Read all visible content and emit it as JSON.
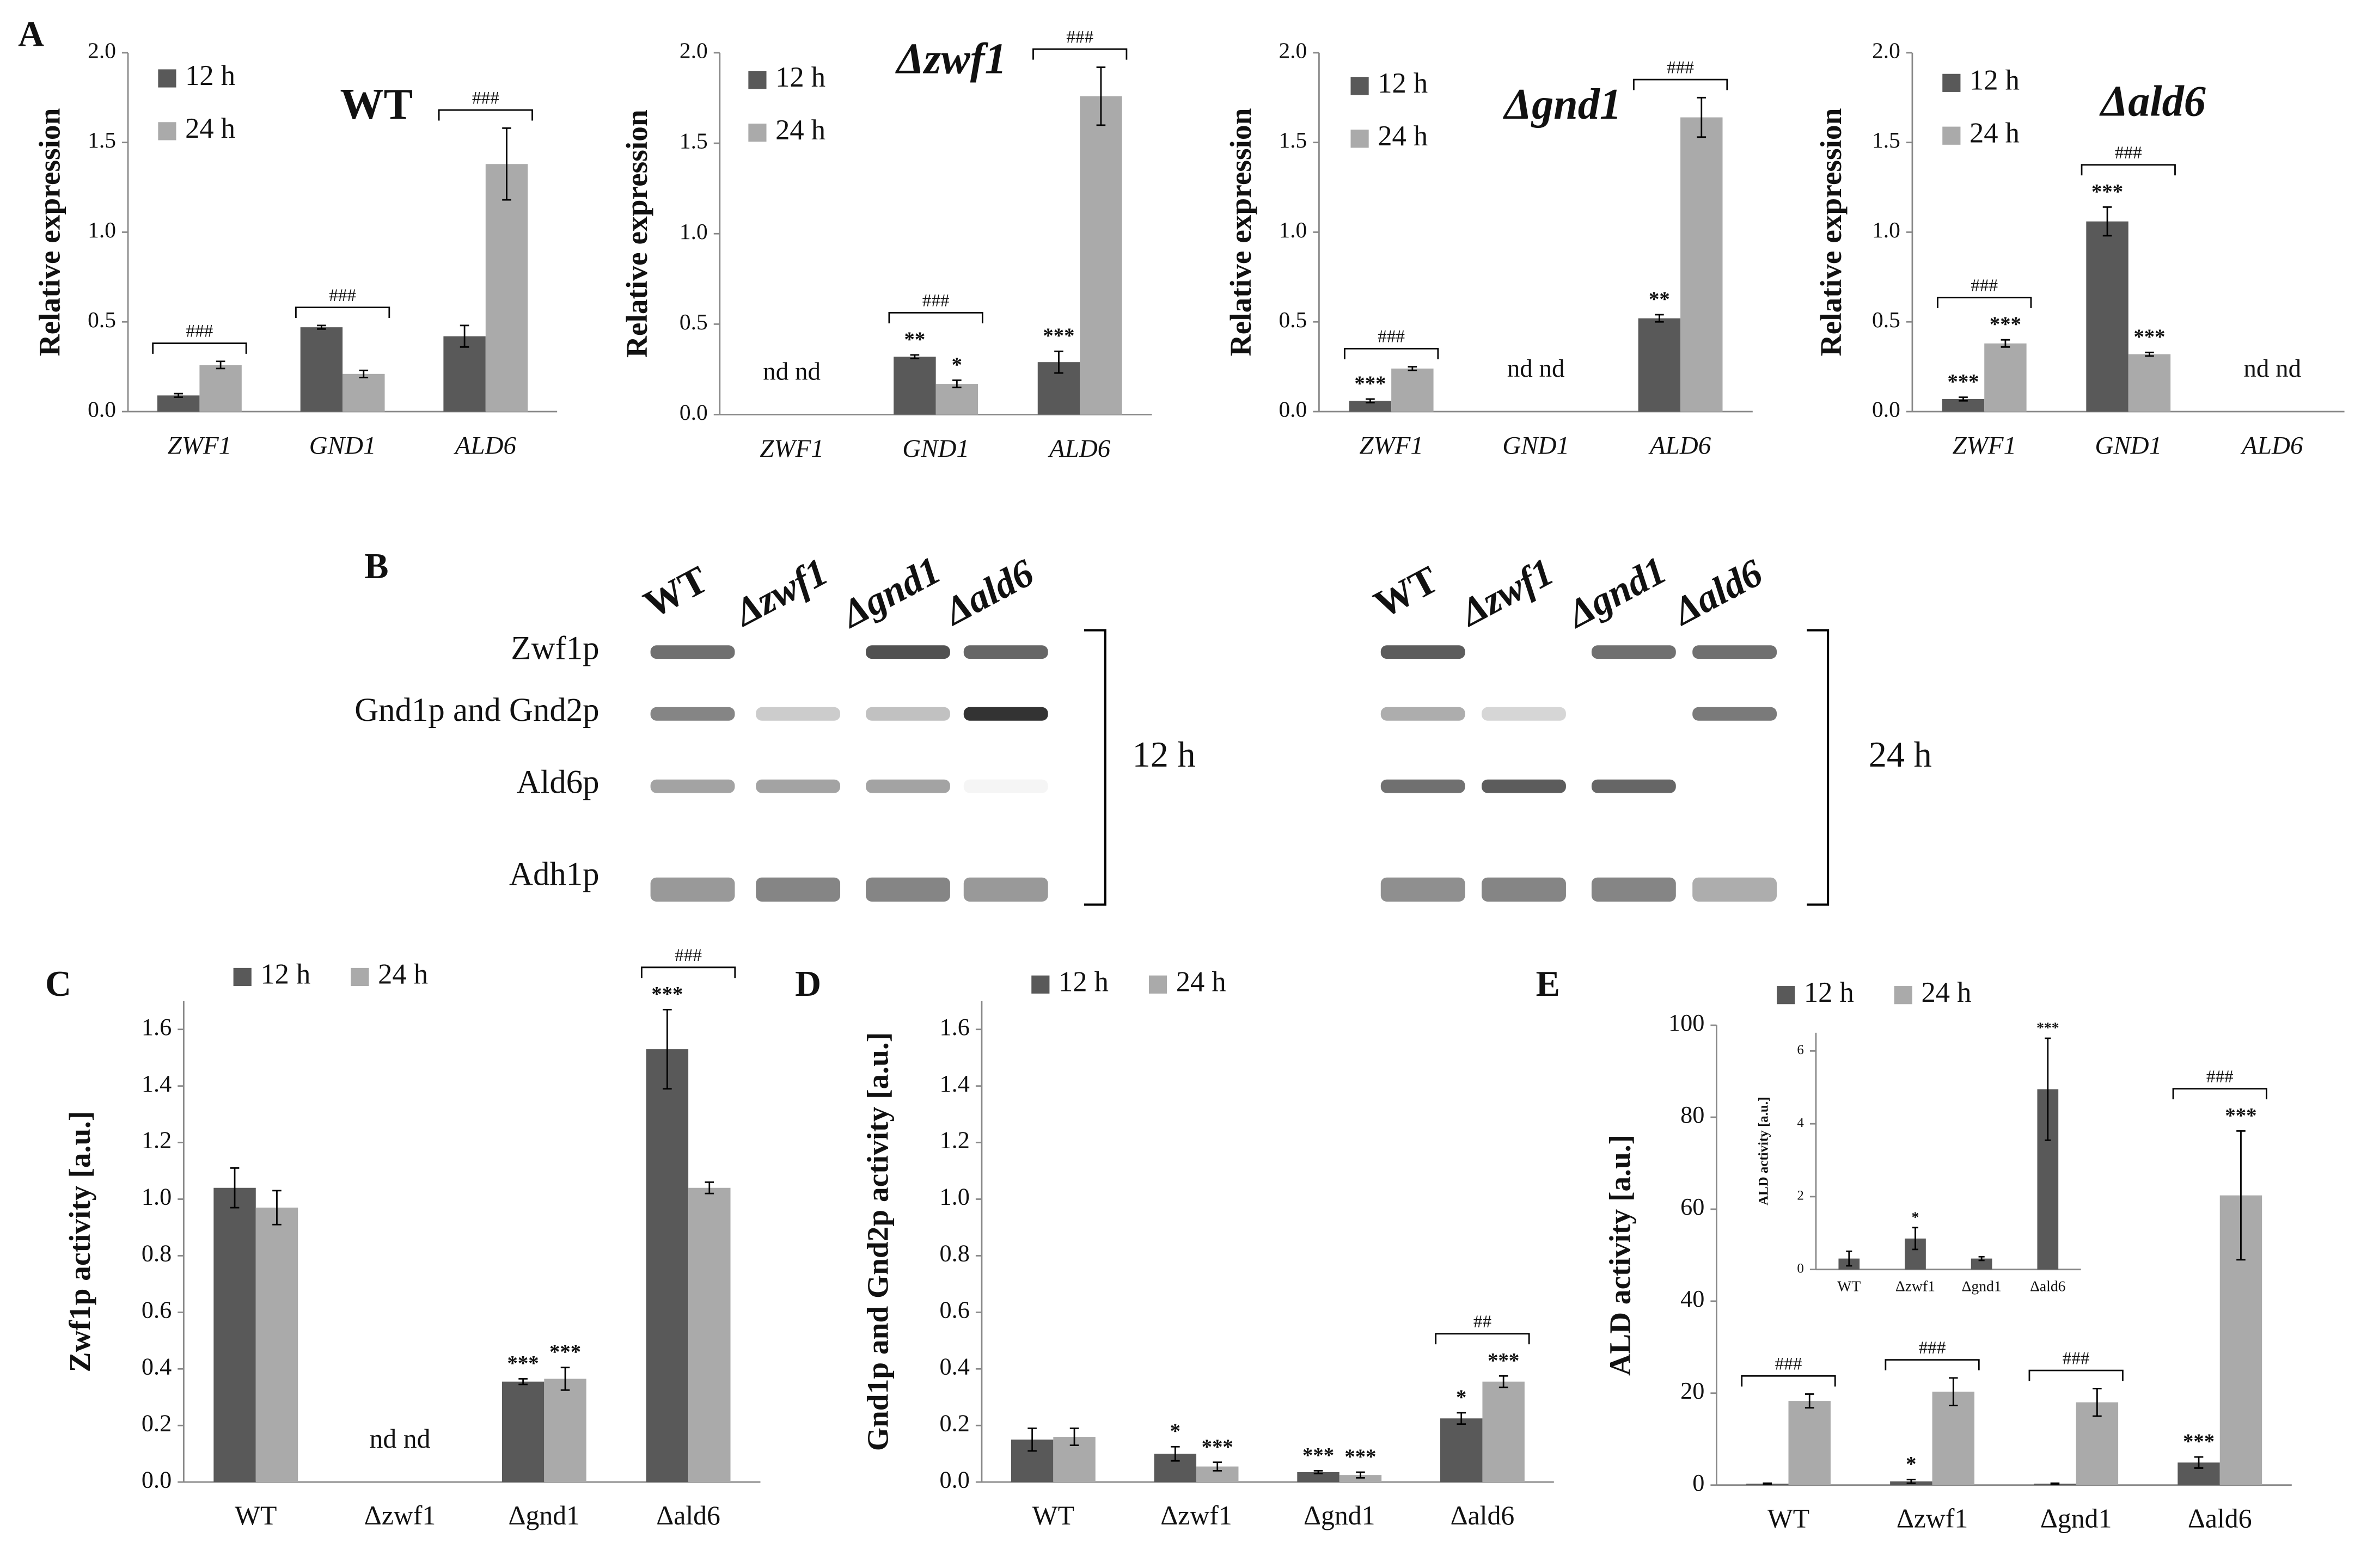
{
  "chart_data": [
    {
      "type": "bar",
      "panel": "A",
      "title": "WT",
      "ylabel": "Relative expression",
      "categories": [
        "ZWF1",
        "GND1",
        "ALD6"
      ],
      "ylim": [
        0,
        2
      ],
      "yticks": [
        {
          "value": 0,
          "label": "0.0"
        },
        0.5,
        {
          "value": 1,
          "label": "1.0"
        },
        1.5,
        {
          "value": 2,
          "label": "2.0"
        }
      ],
      "series": [
        {
          "name": "12 h",
          "color": "#595959",
          "values": [
            0.09,
            0.47,
            0.42
          ],
          "errors": [
            0.01,
            0.01,
            0.06
          ]
        },
        {
          "name": "24 h",
          "color": "#aaaaaa",
          "values": [
            0.26,
            0.21,
            1.38
          ],
          "errors": [
            0.02,
            0.02,
            0.2
          ]
        }
      ],
      "brackets": [
        "###",
        "###",
        "###"
      ]
    },
    {
      "type": "bar",
      "title": "Δzwf1",
      "ylabel": "Relative expression",
      "categories": [
        "ZWF1",
        "GND1",
        "ALD6"
      ],
      "ylim": [
        0,
        2
      ],
      "yticks": [
        {
          "value": 0,
          "label": "0.0"
        },
        0.5,
        {
          "value": 1,
          "label": "1.0"
        },
        1.5,
        {
          "value": 2,
          "label": "2.0"
        }
      ],
      "series": [
        {
          "name": "12 h",
          "color": "#595959",
          "values": [
            null,
            0.32,
            0.29
          ],
          "errors": [
            null,
            0.01,
            0.06
          ],
          "significance": [
            null,
            "**",
            "***"
          ]
        },
        {
          "name": "24 h",
          "color": "#aaaaaa",
          "values": [
            null,
            0.17,
            1.76
          ],
          "errors": [
            null,
            0.02,
            0.16
          ],
          "significance": [
            null,
            "*",
            null
          ]
        }
      ],
      "brackets": [
        null,
        "###",
        "###"
      ],
      "nd": [
        "nd nd",
        null,
        null
      ]
    },
    {
      "type": "bar",
      "title": "Δgnd1",
      "ylabel": "Relative expression",
      "categories": [
        "ZWF1",
        "GND1",
        "ALD6"
      ],
      "ylim": [
        0,
        2
      ],
      "yticks": [
        {
          "value": 0,
          "label": "0.0"
        },
        0.5,
        {
          "value": 1,
          "label": "1.0"
        },
        1.5,
        {
          "value": 2,
          "label": "2.0"
        }
      ],
      "series": [
        {
          "name": "12 h",
          "color": "#595959",
          "values": [
            0.06,
            null,
            0.52
          ],
          "errors": [
            0.01,
            null,
            0.02
          ],
          "significance": [
            "***",
            null,
            "**"
          ]
        },
        {
          "name": "24 h",
          "color": "#aaaaaa",
          "values": [
            0.24,
            null,
            1.64
          ],
          "errors": [
            0.01,
            null,
            0.11
          ]
        }
      ],
      "brackets": [
        "###",
        null,
        "###"
      ],
      "nd": [
        null,
        "nd nd",
        null
      ]
    },
    {
      "type": "bar",
      "title": "Δald6",
      "ylabel": "Relative expression",
      "categories": [
        "ZWF1",
        "GND1",
        "ALD6"
      ],
      "ylim": [
        0,
        2
      ],
      "yticks": [
        {
          "value": 0,
          "label": "0.0"
        },
        0.5,
        {
          "value": 1,
          "label": "1.0"
        },
        1.5,
        {
          "value": 2,
          "label": "2.0"
        }
      ],
      "series": [
        {
          "name": "12 h",
          "color": "#595959",
          "values": [
            0.07,
            1.06,
            null
          ],
          "errors": [
            0.01,
            0.08,
            null
          ],
          "significance": [
            "***",
            "***",
            null
          ]
        },
        {
          "name": "24 h",
          "color": "#aaaaaa",
          "values": [
            0.38,
            0.32,
            null
          ],
          "errors": [
            0.02,
            0.01,
            null
          ],
          "significance": [
            "***",
            "***",
            null
          ]
        }
      ],
      "brackets": [
        "###",
        "###",
        null
      ],
      "nd": [
        null,
        null,
        "nd nd"
      ]
    },
    {
      "type": "bar",
      "panel": "C",
      "ylabel": "Zwf1p activity [a.u.]",
      "categories": [
        "WT",
        "Δzwf1",
        "Δgnd1",
        "Δald6"
      ],
      "ylim": [
        0,
        1.7
      ],
      "yticks": [
        {
          "value": 0,
          "label": "0.0"
        },
        0.2,
        0.4,
        0.6,
        0.8,
        {
          "value": 1,
          "label": "1.0"
        },
        1.2,
        1.4,
        1.6
      ],
      "series": [
        {
          "name": "12 h",
          "color": "#595959",
          "values": [
            1.04,
            null,
            0.355,
            1.53
          ],
          "errors": [
            0.07,
            null,
            0.01,
            0.14
          ],
          "significance": [
            null,
            null,
            "***",
            "***"
          ]
        },
        {
          "name": "24 h",
          "color": "#aaaaaa",
          "values": [
            0.97,
            null,
            0.365,
            1.04
          ],
          "errors": [
            0.06,
            null,
            0.04,
            0.02
          ],
          "significance": [
            null,
            null,
            "***",
            null
          ]
        }
      ],
      "brackets": [
        null,
        null,
        null,
        "###"
      ],
      "nd": [
        null,
        "nd nd",
        null,
        null
      ]
    },
    {
      "type": "bar",
      "panel": "D",
      "ylabel": "Gnd1p and Gnd2p activity [a.u.]",
      "categories": [
        "WT",
        "Δzwf1",
        "Δgnd1",
        "Δald6"
      ],
      "ylim": [
        0,
        1.7
      ],
      "yticks": [
        {
          "value": 0,
          "label": "0.0"
        },
        0.2,
        0.4,
        0.6,
        0.8,
        {
          "value": 1,
          "label": "1.0"
        },
        1.2,
        1.4,
        1.6
      ],
      "series": [
        {
          "name": "12 h",
          "color": "#595959",
          "values": [
            0.15,
            0.1,
            0.035,
            0.225
          ],
          "errors": [
            0.04,
            0.025,
            0.005,
            0.02
          ],
          "significance": [
            null,
            "*",
            "***",
            "*"
          ]
        },
        {
          "name": "24 h",
          "color": "#aaaaaa",
          "values": [
            0.16,
            0.055,
            0.025,
            0.355
          ],
          "errors": [
            0.03,
            0.015,
            0.01,
            0.02
          ],
          "significance": [
            null,
            "***",
            "***",
            "***"
          ]
        }
      ],
      "brackets": [
        null,
        null,
        null,
        "##"
      ]
    },
    {
      "type": "bar",
      "panel": "E",
      "ylabel": "ALD activity [a.u.]",
      "categories": [
        "WT",
        "Δzwf1",
        "Δgnd1",
        "Δald6"
      ],
      "ylim": [
        0,
        100
      ],
      "yticks": [
        0,
        20,
        40,
        60,
        80,
        100
      ],
      "series": [
        {
          "name": "12 h",
          "color": "#595959",
          "values": [
            0.3,
            0.8,
            0.3,
            4.9
          ],
          "errors": [
            0.1,
            0.4,
            0.1,
            1.2
          ],
          "significance": [
            null,
            "*",
            null,
            "***"
          ]
        },
        {
          "name": "24 h",
          "color": "#aaaaaa",
          "values": [
            18.3,
            20.3,
            18.0,
            63
          ],
          "errors": [
            1.5,
            3,
            3,
            14
          ],
          "significance": [
            null,
            null,
            null,
            "***"
          ]
        }
      ],
      "brackets": [
        "###",
        "###",
        "###",
        "###"
      ]
    },
    {
      "type": "bar",
      "ylabel": "ALD activity [a.u.]",
      "categories": [
        "WT",
        "Δzwf1",
        "Δgnd1",
        "Δald6"
      ],
      "ylim": [
        0,
        6.5
      ],
      "yticks": [
        0,
        2,
        4,
        6
      ],
      "series": [
        {
          "color": "#595959",
          "values": [
            0.3,
            0.85,
            0.3,
            4.95
          ],
          "errors": [
            0.2,
            0.3,
            0.05,
            1.4
          ],
          "significance": [
            null,
            "*",
            null,
            "***"
          ]
        }
      ]
    }
  ],
  "blot": {
    "panel": "B",
    "lanes": [
      "WT",
      "Δzwf1",
      "Δgnd1",
      "Δald6"
    ],
    "proteins": [
      "Zwf1p",
      "Gnd1p and Gnd2p",
      "Ald6p",
      "Adh1p"
    ],
    "times": [
      "12 h",
      "24 h"
    ]
  }
}
